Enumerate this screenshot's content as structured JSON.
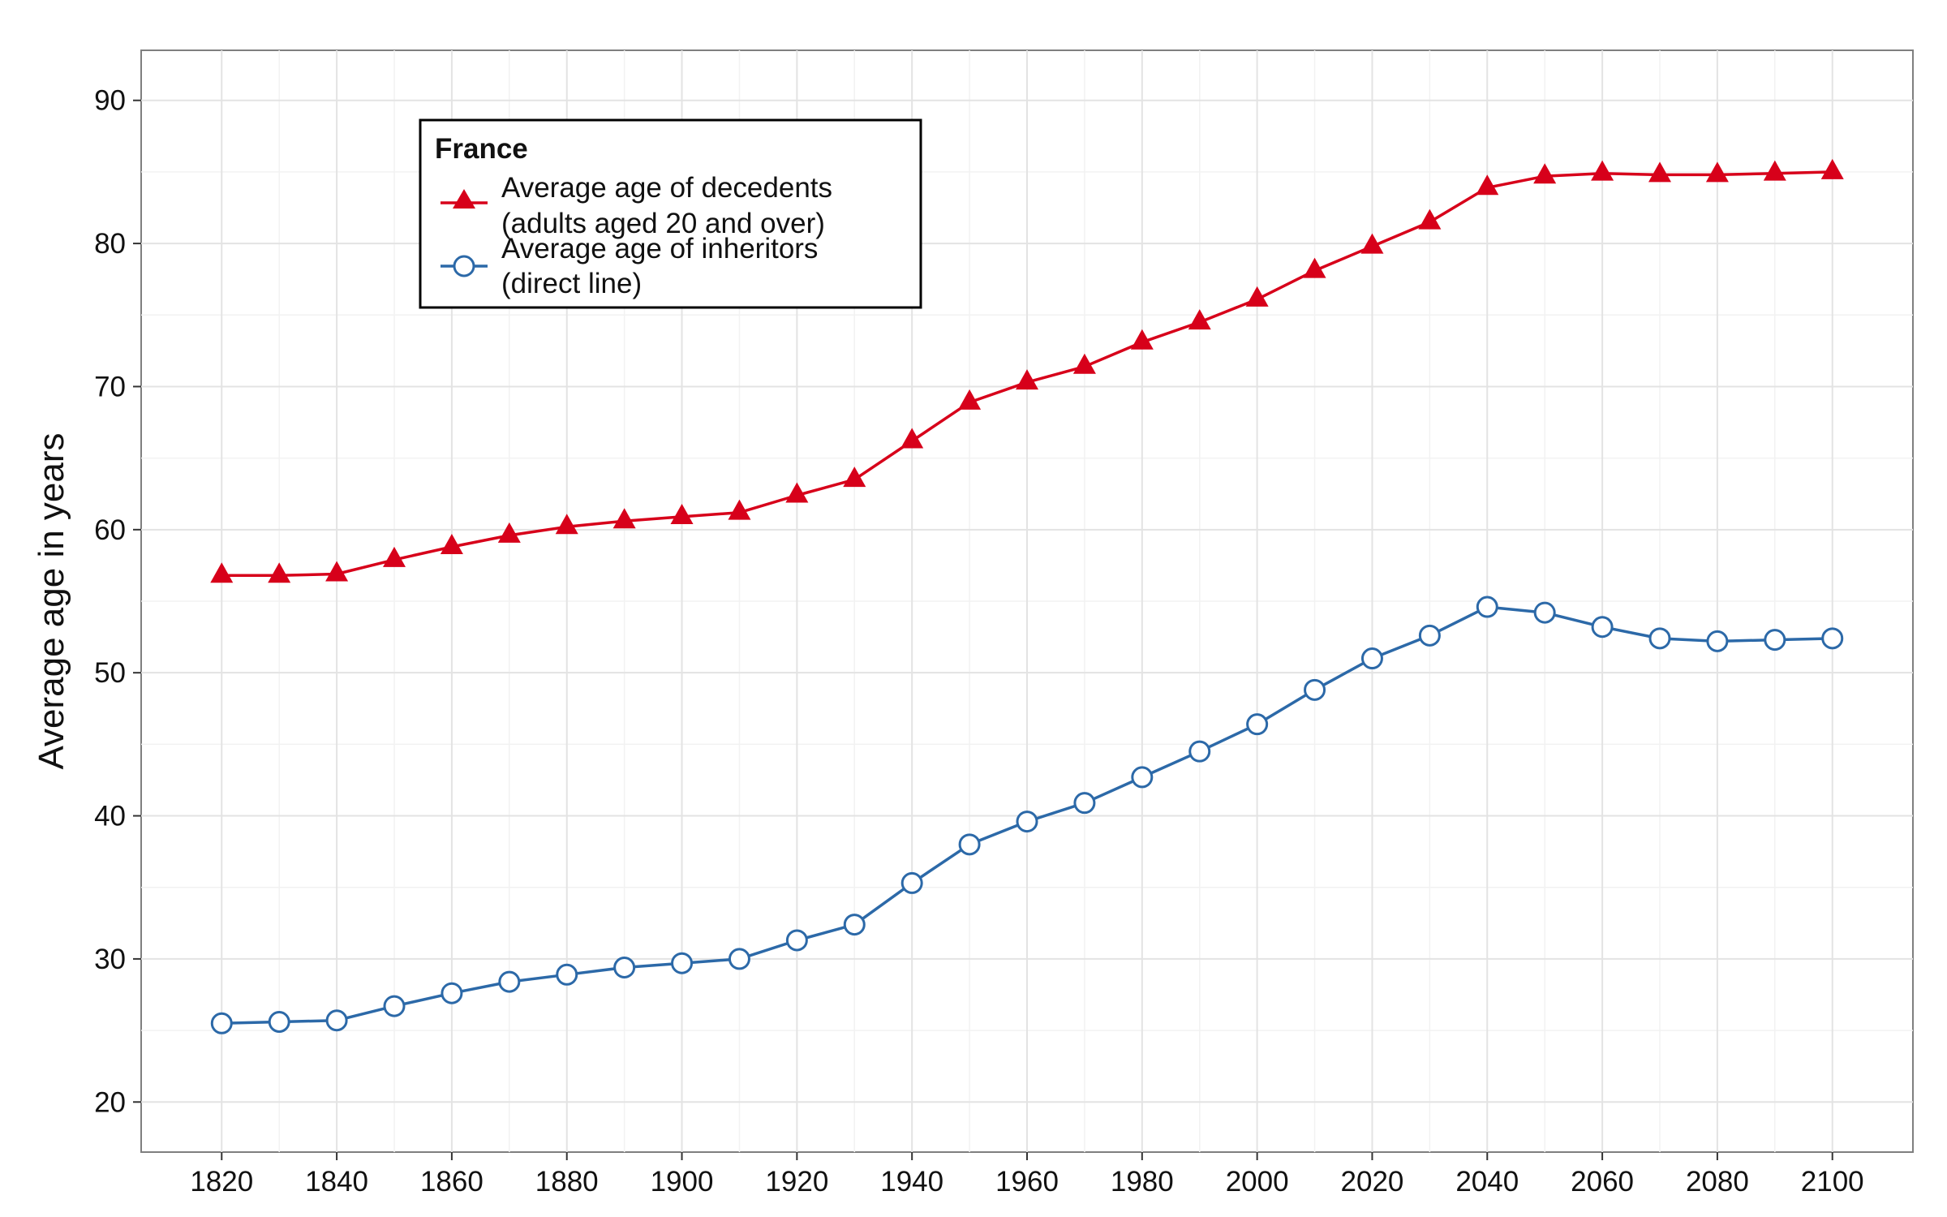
{
  "chart_data": {
    "type": "line",
    "title": "",
    "xlabel": "",
    "ylabel": "Average age in years",
    "xlim": [
      1806,
      2114
    ],
    "ylim": [
      16.5,
      93.5
    ],
    "x_ticks": [
      1820,
      1840,
      1860,
      1880,
      1900,
      1920,
      1940,
      1960,
      1980,
      2000,
      2020,
      2040,
      2060,
      2080,
      2100
    ],
    "y_ticks": [
      20,
      30,
      40,
      50,
      60,
      70,
      80,
      90
    ],
    "grid": true,
    "legend": {
      "title": "France",
      "placement": "top-left"
    },
    "x": [
      1820,
      1830,
      1840,
      1850,
      1860,
      1870,
      1880,
      1890,
      1900,
      1910,
      1920,
      1930,
      1940,
      1950,
      1960,
      1970,
      1980,
      1990,
      2000,
      2010,
      2020,
      2030,
      2040,
      2050,
      2060,
      2070,
      2080,
      2090,
      2100
    ],
    "series": [
      {
        "name": "Average age of decedents",
        "name_line2": "(adults aged 20 and over)",
        "color": "#d7001a",
        "marker": "triangle",
        "values": [
          56.8,
          56.8,
          56.9,
          57.9,
          58.8,
          59.6,
          60.2,
          60.6,
          60.9,
          61.2,
          62.4,
          63.5,
          66.2,
          68.9,
          70.3,
          71.4,
          73.1,
          74.5,
          76.1,
          78.1,
          79.8,
          81.5,
          83.9,
          84.7,
          84.9,
          84.8,
          84.8,
          84.9,
          85.0
        ]
      },
      {
        "name": "Average age of inheritors",
        "name_line2": "(direct line)",
        "color": "#2c69a8",
        "marker": "circle",
        "values": [
          25.5,
          25.6,
          25.7,
          26.7,
          27.6,
          28.4,
          28.9,
          29.4,
          29.7,
          30.0,
          31.3,
          32.4,
          35.3,
          38.0,
          39.6,
          40.9,
          42.7,
          44.5,
          46.4,
          48.8,
          51.0,
          52.6,
          54.6,
          54.2,
          53.2,
          52.4,
          52.2,
          52.3,
          52.4
        ]
      }
    ]
  }
}
